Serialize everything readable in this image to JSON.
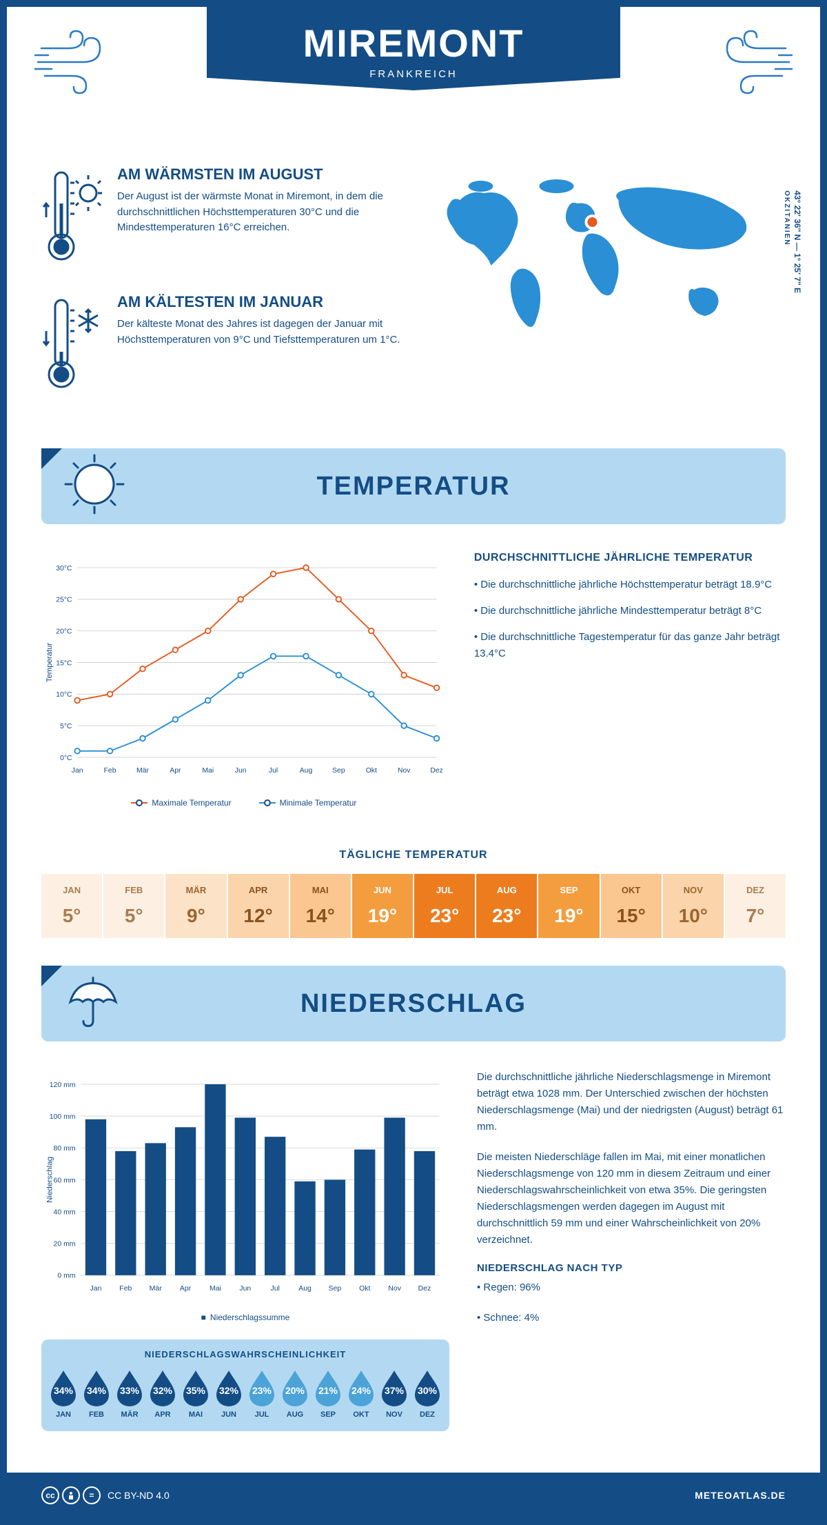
{
  "header": {
    "title": "MIREMONT",
    "subtitle": "FRANKREICH"
  },
  "coords": {
    "lat": "43° 22' 36'' N",
    "lon": "1° 25' 7'' E",
    "region": "OKZITANIEN"
  },
  "facts": {
    "warm": {
      "title": "AM WÄRMSTEN IM AUGUST",
      "text": "Der August ist der wärmste Monat in Miremont, in dem die durchschnittlichen Höchsttemperaturen 30°C und die Mindesttemperaturen 16°C erreichen."
    },
    "cold": {
      "title": "AM KÄLTESTEN IM JANUAR",
      "text": "Der kälteste Monat des Jahres ist dagegen der Januar mit Höchsttemperaturen von 9°C und Tiefsttemperaturen um 1°C."
    }
  },
  "temperature": {
    "section_title": "TEMPERATUR",
    "text_title": "DURCHSCHNITTLICHE JÄHRLICHE TEMPERATUR",
    "bullets": [
      "• Die durchschnittliche jährliche Höchsttemperatur beträgt 18.9°C",
      "• Die durchschnittliche jährliche Mindesttemperatur beträgt 8°C",
      "• Die durchschnittliche Tagestemperatur für das ganze Jahr beträgt 13.4°C"
    ],
    "chart": {
      "type": "line",
      "months": [
        "Jan",
        "Feb",
        "Mär",
        "Apr",
        "Mai",
        "Jun",
        "Jul",
        "Aug",
        "Sep",
        "Okt",
        "Nov",
        "Dez"
      ],
      "max": [
        9,
        10,
        14,
        17,
        20,
        25,
        29,
        30,
        25,
        20,
        13,
        11
      ],
      "min": [
        1,
        1,
        3,
        6,
        9,
        13,
        16,
        16,
        13,
        10,
        5,
        3
      ],
      "ylabel": "Temperatur",
      "ylim": [
        0,
        30
      ],
      "ytick_step": 5,
      "max_color": "#e65a1e",
      "min_color": "#2a8fd4",
      "grid_color": "#d8d8d8",
      "line_width": 2,
      "marker_size": 4,
      "legend": {
        "max": "Maximale Temperatur",
        "min": "Minimale Temperatur"
      }
    },
    "daily": {
      "title": "TÄGLICHE TEMPERATUR",
      "months": [
        "JAN",
        "FEB",
        "MÄR",
        "APR",
        "MAI",
        "JUN",
        "JUL",
        "AUG",
        "SEP",
        "OKT",
        "NOV",
        "DEZ"
      ],
      "values": [
        "5°",
        "5°",
        "9°",
        "12°",
        "14°",
        "19°",
        "23°",
        "23°",
        "19°",
        "15°",
        "10°",
        "7°"
      ],
      "bg_colors": [
        "#fdf0e3",
        "#fdf0e3",
        "#fce2c7",
        "#fbd4ab",
        "#fac790",
        "#f49d3e",
        "#ed7c1f",
        "#ed7c1f",
        "#f49d3e",
        "#fac790",
        "#fbd4ab",
        "#fdf0e3"
      ],
      "text_colors": [
        "#a97c4f",
        "#a97c4f",
        "#9c6530",
        "#8b5220",
        "#8b5220",
        "#ffffff",
        "#ffffff",
        "#ffffff",
        "#ffffff",
        "#8b5220",
        "#9c6530",
        "#a97c4f"
      ]
    }
  },
  "precip": {
    "section_title": "NIEDERSCHLAG",
    "text1": "Die durchschnittliche jährliche Niederschlagsmenge in Miremont beträgt etwa 1028 mm. Der Unterschied zwischen der höchsten Niederschlagsmenge (Mai) und der niedrigsten (August) beträgt 61 mm.",
    "text2": "Die meisten Niederschläge fallen im Mai, mit einer monatlichen Niederschlagsmenge von 120 mm in diesem Zeitraum und einer Niederschlagswahrscheinlichkeit von etwa 35%. Die geringsten Niederschlagsmengen werden dagegen im August mit durchschnittlich 59 mm und einer Wahrscheinlichkeit von 20% verzeichnet.",
    "type_title": "NIEDERSCHLAG NACH TYP",
    "type_bullets": [
      "• Regen: 96%",
      "• Schnee: 4%"
    ],
    "chart": {
      "type": "bar",
      "months": [
        "Jan",
        "Feb",
        "Mär",
        "Apr",
        "Mai",
        "Jun",
        "Jul",
        "Aug",
        "Sep",
        "Okt",
        "Nov",
        "Dez"
      ],
      "values": [
        98,
        78,
        83,
        93,
        120,
        99,
        87,
        59,
        60,
        79,
        99,
        78
      ],
      "ylabel": "Niederschlag",
      "ylim": [
        0,
        120
      ],
      "ytick_step": 20,
      "bar_color": "#144d85",
      "grid_color": "#d8d8d8",
      "bar_width": 0.7,
      "legend": "Niederschlagssumme"
    },
    "prob": {
      "title": "NIEDERSCHLAGSWAHRSCHEINLICHKEIT",
      "months": [
        "JAN",
        "FEB",
        "MÄR",
        "APR",
        "MAI",
        "JUN",
        "JUL",
        "AUG",
        "SEP",
        "OKT",
        "NOV",
        "DEZ"
      ],
      "values": [
        "34%",
        "34%",
        "33%",
        "32%",
        "35%",
        "32%",
        "23%",
        "20%",
        "21%",
        "24%",
        "37%",
        "30%"
      ],
      "colors": [
        "#144d85",
        "#144d85",
        "#144d85",
        "#144d85",
        "#144d85",
        "#144d85",
        "#4ba3d8",
        "#4ba3d8",
        "#4ba3d8",
        "#4ba3d8",
        "#144d85",
        "#144d85"
      ]
    }
  },
  "footer": {
    "license": "CC BY-ND 4.0",
    "site": "METEOATLAS.DE"
  },
  "colors": {
    "primary": "#144d85",
    "light_blue": "#b3d9f2",
    "map_blue": "#2a8fd4"
  }
}
